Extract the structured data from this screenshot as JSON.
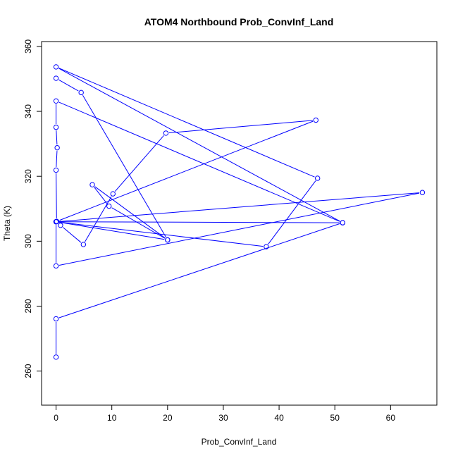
{
  "chart_data": {
    "type": "line",
    "title": "ATOM4 Northbound Prob_ConvInf_Land",
    "xlabel": "Prob_ConvInf_Land",
    "ylabel": "Theta (K)",
    "xlim": [
      -2.6,
      68.3
    ],
    "ylim": [
      249.5,
      361.5
    ],
    "xticks": [
      0,
      10,
      20,
      30,
      40,
      50,
      60
    ],
    "yticks": [
      260,
      280,
      300,
      320,
      340,
      360
    ],
    "grid": false,
    "markers": "open-circle",
    "series": [
      {
        "color": "#0000ff",
        "points": [
          [
            0,
            264.3
          ],
          [
            0,
            276.1
          ],
          [
            51.4,
            305.7
          ],
          [
            0,
            306.0
          ],
          [
            65.7,
            315.0
          ],
          [
            0,
            292.4
          ],
          [
            0,
            306.0
          ],
          [
            0.8,
            304.9
          ],
          [
            4.9,
            299.0
          ],
          [
            10.2,
            314.6
          ],
          [
            19.7,
            333.3
          ],
          [
            46.6,
            337.3
          ],
          [
            0.1,
            306.1
          ],
          [
            0,
            321.9
          ],
          [
            0.2,
            328.8
          ],
          [
            0,
            335.1
          ],
          [
            0,
            343.2
          ],
          [
            51.4,
            305.7
          ],
          [
            0,
            353.7
          ],
          [
            46.9,
            319.4
          ],
          [
            37.7,
            298.3
          ],
          [
            0,
            306.0
          ],
          [
            20.0,
            300.4
          ],
          [
            6.5,
            317.4
          ],
          [
            9.5,
            310.8
          ],
          [
            20.0,
            300.4
          ],
          [
            4.5,
            345.8
          ],
          [
            0,
            350.2
          ]
        ]
      }
    ]
  }
}
